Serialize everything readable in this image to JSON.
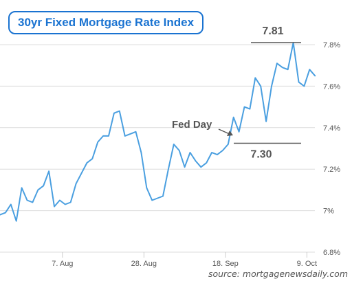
{
  "title": "30yr Fixed Mortgage Rate Index",
  "source": "source: mortgagenewsdaily.com",
  "colors": {
    "line": "#4a9fe0",
    "title": "#1a73d1",
    "grid": "#dcdcdc",
    "annotation": "#555555"
  },
  "chart_data": {
    "type": "line",
    "title": "30yr Fixed Mortgage Rate Index",
    "xlabel": "",
    "ylabel": "",
    "ylim": [
      6.8,
      7.8
    ],
    "grid": true,
    "x_tick_labels": [
      "7. Aug",
      "28. Aug",
      "18. Sep",
      "9. Oct"
    ],
    "y_tick_labels": [
      "6.8%",
      "7%",
      "7.2%",
      "7.4%",
      "7.6%",
      "7.8%"
    ],
    "y_ticks": [
      6.8,
      7.0,
      7.2,
      7.4,
      7.6,
      7.8
    ],
    "series": [
      {
        "values": [
          6.98,
          6.99,
          7.03,
          6.95,
          7.11,
          7.05,
          7.04,
          7.1,
          7.12,
          7.19,
          7.02,
          7.05,
          7.03,
          7.04,
          7.13,
          7.18,
          7.23,
          7.25,
          7.33,
          7.36,
          7.36,
          7.47,
          7.48,
          7.36,
          7.37,
          7.38,
          7.28,
          7.11,
          7.05,
          7.06,
          7.07,
          7.2,
          7.32,
          7.29,
          7.21,
          7.28,
          7.24,
          7.21,
          7.23,
          7.28,
          7.27,
          7.29,
          7.32,
          7.45,
          7.38,
          7.5,
          7.49,
          7.64,
          7.6,
          7.43,
          7.6,
          7.71,
          7.69,
          7.68,
          7.81,
          7.62,
          7.6,
          7.68,
          7.65
        ]
      }
    ],
    "annotations": [
      {
        "text": "7.81",
        "kind": "high"
      },
      {
        "text": "7.30",
        "kind": "level"
      },
      {
        "text": "Fed Day",
        "kind": "arrow-label"
      }
    ]
  }
}
